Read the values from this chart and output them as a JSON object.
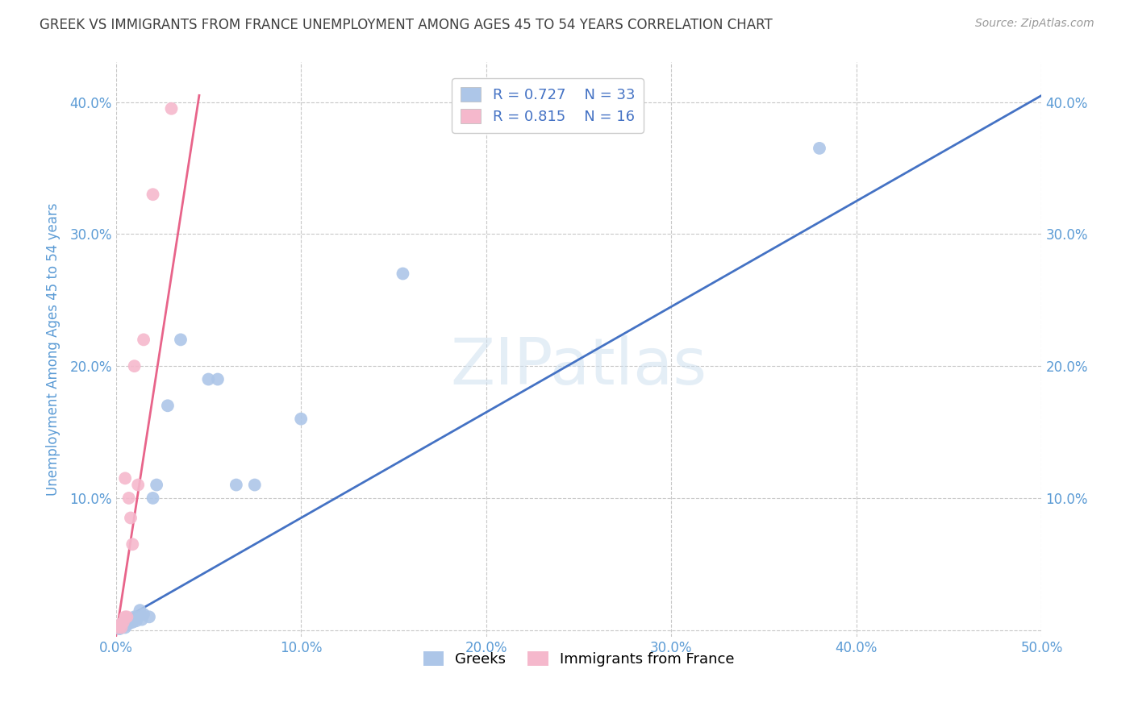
{
  "title": "GREEK VS IMMIGRANTS FROM FRANCE UNEMPLOYMENT AMONG AGES 45 TO 54 YEARS CORRELATION CHART",
  "source": "Source: ZipAtlas.com",
  "ylabel": "Unemployment Among Ages 45 to 54 years",
  "xlim": [
    0.0,
    0.5
  ],
  "ylim": [
    -0.005,
    0.43
  ],
  "xticks": [
    0.0,
    0.1,
    0.2,
    0.3,
    0.4,
    0.5
  ],
  "yticks": [
    0.0,
    0.1,
    0.2,
    0.3,
    0.4
  ],
  "xtick_labels": [
    "0.0%",
    "10.0%",
    "20.0%",
    "30.0%",
    "40.0%",
    "50.0%"
  ],
  "ytick_labels": [
    "",
    "10.0%",
    "20.0%",
    "30.0%",
    "40.0%"
  ],
  "blue_r": 0.727,
  "blue_n": 33,
  "pink_r": 0.815,
  "pink_n": 16,
  "blue_color": "#adc6e8",
  "pink_color": "#f5b8cc",
  "blue_line_color": "#4472c4",
  "pink_line_color": "#e8648a",
  "legend_label_blue": "Greeks",
  "legend_label_pink": "Immigrants from France",
  "watermark_text": "ZIPatlas",
  "title_color": "#404040",
  "axis_label_color": "#5b9bd5",
  "tick_color": "#5b9bd5",
  "blues_x": [
    0.001,
    0.002,
    0.002,
    0.003,
    0.003,
    0.004,
    0.004,
    0.005,
    0.005,
    0.006,
    0.006,
    0.007,
    0.008,
    0.009,
    0.01,
    0.01,
    0.011,
    0.012,
    0.013,
    0.014,
    0.015,
    0.018,
    0.02,
    0.022,
    0.028,
    0.035,
    0.05,
    0.055,
    0.065,
    0.075,
    0.1,
    0.155,
    0.38
  ],
  "blues_y": [
    0.002,
    0.001,
    0.003,
    0.002,
    0.004,
    0.003,
    0.005,
    0.002,
    0.006,
    0.004,
    0.007,
    0.005,
    0.007,
    0.006,
    0.008,
    0.01,
    0.007,
    0.01,
    0.015,
    0.008,
    0.012,
    0.01,
    0.1,
    0.11,
    0.17,
    0.22,
    0.19,
    0.19,
    0.11,
    0.11,
    0.16,
    0.27,
    0.365
  ],
  "pinks_x": [
    0.001,
    0.002,
    0.003,
    0.003,
    0.004,
    0.005,
    0.005,
    0.006,
    0.007,
    0.008,
    0.009,
    0.01,
    0.012,
    0.015,
    0.02,
    0.03
  ],
  "pinks_y": [
    0.002,
    0.003,
    0.002,
    0.005,
    0.006,
    0.01,
    0.115,
    0.01,
    0.1,
    0.085,
    0.065,
    0.2,
    0.11,
    0.22,
    0.33,
    0.395
  ],
  "blue_line_x": [
    0.0,
    0.5
  ],
  "blue_line_y": [
    0.005,
    0.405
  ],
  "pink_line_x": [
    0.0,
    0.045
  ],
  "pink_line_y": [
    -0.005,
    0.405
  ]
}
